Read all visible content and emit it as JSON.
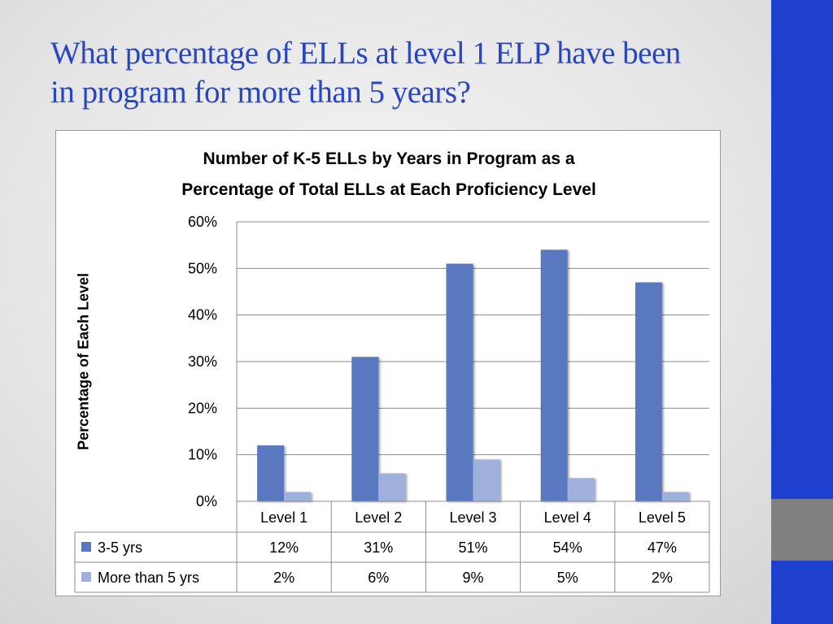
{
  "slide": {
    "title_line1": "What percentage of ELLs at level 1 ELP have been",
    "title_line2": "in program for more than 5 years?",
    "accent_blue": "#1f3fcf",
    "accent_gray": "#808080"
  },
  "chart_data": {
    "type": "bar",
    "title_line1": "Number of K-5 ELLs by Years in Program as a",
    "title_line2": "Percentage of Total ELLs at Each Proficiency Level",
    "ylabel": "Percentage of Each Level",
    "xlabel": "",
    "ylim": [
      0,
      60
    ],
    "yticks": [
      "0%",
      "10%",
      "20%",
      "30%",
      "40%",
      "50%",
      "60%"
    ],
    "categories": [
      "Level 1",
      "Level 2",
      "Level 3",
      "Level 4",
      "Level 5"
    ],
    "series": [
      {
        "name": "3-5 yrs",
        "values": [
          12,
          31,
          51,
          54,
          47
        ],
        "labels": [
          "12%",
          "31%",
          "51%",
          "54%",
          "47%"
        ],
        "color": "#5a78c0"
      },
      {
        "name": "More than 5 yrs",
        "values": [
          2,
          6,
          9,
          5,
          2
        ],
        "labels": [
          "2%",
          "6%",
          "9%",
          "5%",
          "2%"
        ],
        "color": "#9fb0dd"
      }
    ],
    "grid": true,
    "legend": "data-table"
  }
}
